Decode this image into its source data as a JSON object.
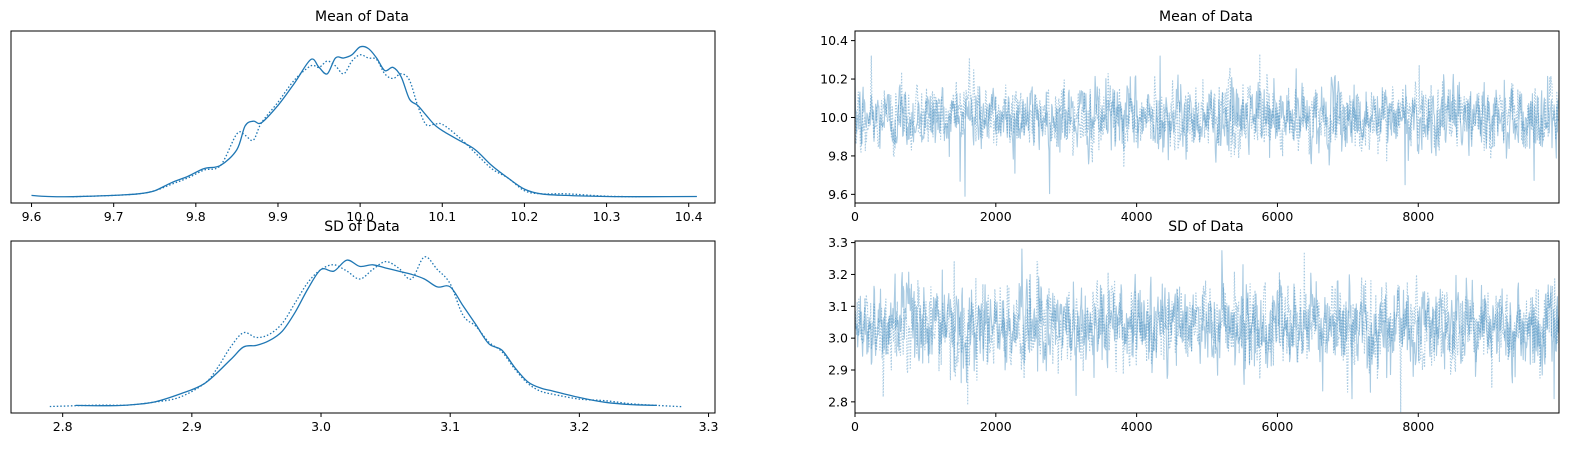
{
  "panels": [
    {
      "kind": "density",
      "title": "Mean of Data",
      "xlim": [
        9.575,
        10.432
      ],
      "xticks": [
        9.6,
        9.7,
        9.8,
        9.9,
        10.0,
        10.1,
        10.2,
        10.3,
        10.4
      ],
      "xtick_labels": [
        "9.6",
        "9.7",
        "9.8",
        "9.9",
        "10.0",
        "10.1",
        "10.2",
        "10.3",
        "10.4"
      ]
    },
    {
      "kind": "trace",
      "title": "Mean of Data",
      "xlim": [
        0,
        9999
      ],
      "ylim": [
        9.555,
        10.45
      ],
      "xticks": [
        0,
        2000,
        4000,
        6000,
        8000
      ],
      "xtick_labels": [
        "0",
        "2000",
        "4000",
        "6000",
        "8000"
      ],
      "yticks": [
        9.6,
        9.8,
        10.0,
        10.2,
        10.4
      ],
      "ytick_labels": [
        "9.6",
        "9.8",
        "10.0",
        "10.2",
        "10.4"
      ]
    },
    {
      "kind": "density",
      "title": "SD of Data",
      "xlim": [
        2.76,
        3.305
      ],
      "xticks": [
        2.8,
        2.9,
        3.0,
        3.1,
        3.2,
        3.3
      ],
      "xtick_labels": [
        "2.8",
        "2.9",
        "3.0",
        "3.1",
        "3.2",
        "3.3"
      ]
    },
    {
      "kind": "trace",
      "title": "SD of Data",
      "xlim": [
        0,
        9999
      ],
      "ylim": [
        2.765,
        3.305
      ],
      "xticks": [
        0,
        2000,
        4000,
        6000,
        8000
      ],
      "xtick_labels": [
        "0",
        "2000",
        "4000",
        "6000",
        "8000"
      ],
      "yticks": [
        2.8,
        2.9,
        3.0,
        3.1,
        3.2,
        3.3
      ],
      "ytick_labels": [
        "2.8",
        "2.9",
        "3.0",
        "3.1",
        "3.2",
        "3.3"
      ]
    }
  ],
  "chart_data": [
    {
      "type": "line",
      "title": "Mean of Data",
      "xlim": [
        9.575,
        10.432
      ],
      "series": [
        {
          "style": "solid",
          "x": [
            9.6,
            9.62,
            9.65,
            9.7,
            9.73,
            9.75,
            9.77,
            9.79,
            9.81,
            9.83,
            9.85,
            9.86,
            9.87,
            9.88,
            9.9,
            9.92,
            9.94,
            9.95,
            9.96,
            9.97,
            9.98,
            9.99,
            10.0,
            10.01,
            10.02,
            10.03,
            10.04,
            10.05,
            10.06,
            10.07,
            10.08,
            10.09,
            10.1,
            10.12,
            10.14,
            10.16,
            10.18,
            10.2,
            10.22,
            10.25,
            10.3,
            10.35,
            10.41
          ],
          "y": [
            0.01,
            0.003,
            0.002,
            0.01,
            0.02,
            0.04,
            0.09,
            0.13,
            0.18,
            0.2,
            0.3,
            0.45,
            0.48,
            0.47,
            0.58,
            0.72,
            0.87,
            0.82,
            0.78,
            0.88,
            0.88,
            0.9,
            0.95,
            0.94,
            0.88,
            0.8,
            0.82,
            0.76,
            0.62,
            0.58,
            0.52,
            0.46,
            0.42,
            0.36,
            0.3,
            0.2,
            0.12,
            0.05,
            0.02,
            0.01,
            0.003,
            0.002,
            0.003
          ]
        },
        {
          "style": "dotted",
          "x": [
            9.65,
            9.7,
            9.73,
            9.75,
            9.77,
            9.79,
            9.81,
            9.83,
            9.85,
            9.86,
            9.87,
            9.88,
            9.9,
            9.92,
            9.94,
            9.95,
            9.96,
            9.97,
            9.98,
            9.99,
            10.0,
            10.01,
            10.02,
            10.03,
            10.04,
            10.05,
            10.06,
            10.07,
            10.08,
            10.09,
            10.1,
            10.12,
            10.14,
            10.16,
            10.18,
            10.2,
            10.22,
            10.25,
            10.3,
            10.34
          ],
          "y": [
            0.002,
            0.01,
            0.02,
            0.04,
            0.08,
            0.12,
            0.17,
            0.2,
            0.4,
            0.39,
            0.36,
            0.47,
            0.6,
            0.74,
            0.83,
            0.82,
            0.86,
            0.83,
            0.78,
            0.86,
            0.9,
            0.88,
            0.87,
            0.78,
            0.75,
            0.78,
            0.74,
            0.58,
            0.46,
            0.46,
            0.46,
            0.38,
            0.28,
            0.18,
            0.12,
            0.04,
            0.02,
            0.02,
            0.005,
            0.002
          ]
        }
      ]
    },
    {
      "type": "line",
      "title": "Mean of Data",
      "xlim": [
        0,
        9999
      ],
      "ylim": [
        9.555,
        10.45
      ],
      "series": [
        {
          "style": "solid",
          "center": 10.0,
          "sd": 0.085,
          "n": 1300,
          "spikes": [
            [
              1560,
              10.41
            ],
            [
              1560,
              9.59
            ],
            [
              2270,
              9.71
            ],
            [
              4330,
              10.32
            ],
            [
              7810,
              9.65
            ]
          ]
        },
        {
          "style": "dotted",
          "center": 10.0,
          "sd": 0.085,
          "n": 1300,
          "spikes": [
            [
              230,
              10.32
            ],
            [
              5750,
              10.33
            ],
            [
              8010,
              10.27
            ]
          ]
        }
      ]
    },
    {
      "type": "line",
      "title": "SD of Data",
      "xlim": [
        2.76,
        3.305
      ],
      "series": [
        {
          "style": "solid",
          "x": [
            2.81,
            2.83,
            2.85,
            2.87,
            2.89,
            2.91,
            2.93,
            2.94,
            2.95,
            2.96,
            2.97,
            2.98,
            2.99,
            3.0,
            3.01,
            3.02,
            3.03,
            3.04,
            3.05,
            3.06,
            3.07,
            3.08,
            3.09,
            3.1,
            3.11,
            3.12,
            3.13,
            3.14,
            3.15,
            3.16,
            3.17,
            3.18,
            3.2,
            3.22,
            3.24,
            3.26
          ],
          "y": [
            0.01,
            0.008,
            0.012,
            0.03,
            0.08,
            0.15,
            0.3,
            0.38,
            0.39,
            0.42,
            0.48,
            0.6,
            0.75,
            0.87,
            0.86,
            0.93,
            0.89,
            0.9,
            0.88,
            0.86,
            0.84,
            0.81,
            0.76,
            0.76,
            0.64,
            0.52,
            0.4,
            0.36,
            0.25,
            0.16,
            0.12,
            0.1,
            0.06,
            0.03,
            0.015,
            0.01
          ]
        },
        {
          "style": "dotted",
          "x": [
            2.79,
            2.81,
            2.83,
            2.85,
            2.87,
            2.89,
            2.91,
            2.92,
            2.93,
            2.94,
            2.95,
            2.96,
            2.97,
            2.98,
            2.99,
            3.0,
            3.01,
            3.02,
            3.03,
            3.04,
            3.05,
            3.06,
            3.07,
            3.08,
            3.09,
            3.1,
            3.11,
            3.12,
            3.13,
            3.14,
            3.15,
            3.16,
            3.17,
            3.18,
            3.2,
            3.22,
            3.24,
            3.26,
            3.28
          ],
          "y": [
            0.003,
            0.008,
            0.012,
            0.012,
            0.03,
            0.06,
            0.15,
            0.25,
            0.38,
            0.47,
            0.44,
            0.46,
            0.53,
            0.66,
            0.79,
            0.87,
            0.9,
            0.86,
            0.81,
            0.87,
            0.92,
            0.88,
            0.81,
            0.95,
            0.87,
            0.78,
            0.58,
            0.51,
            0.41,
            0.35,
            0.24,
            0.15,
            0.1,
            0.08,
            0.05,
            0.04,
            0.02,
            0.01,
            0.002
          ]
        }
      ]
    },
    {
      "type": "line",
      "title": "SD of Data",
      "xlim": [
        0,
        9999
      ],
      "ylim": [
        2.765,
        3.305
      ],
      "series": [
        {
          "style": "solid",
          "center": 3.04,
          "sd": 0.065,
          "n": 1300,
          "spikes": [
            [
              1510,
              2.86
            ],
            [
              2370,
              3.28
            ],
            [
              3140,
              2.82
            ],
            [
              7060,
              2.81
            ],
            [
              9930,
              2.81
            ]
          ]
        },
        {
          "style": "dotted",
          "center": 3.04,
          "sd": 0.065,
          "n": 1300,
          "spikes": [
            [
              1600,
              2.79
            ],
            [
              6380,
              3.27
            ],
            [
              1410,
              3.24
            ]
          ]
        }
      ]
    }
  ]
}
